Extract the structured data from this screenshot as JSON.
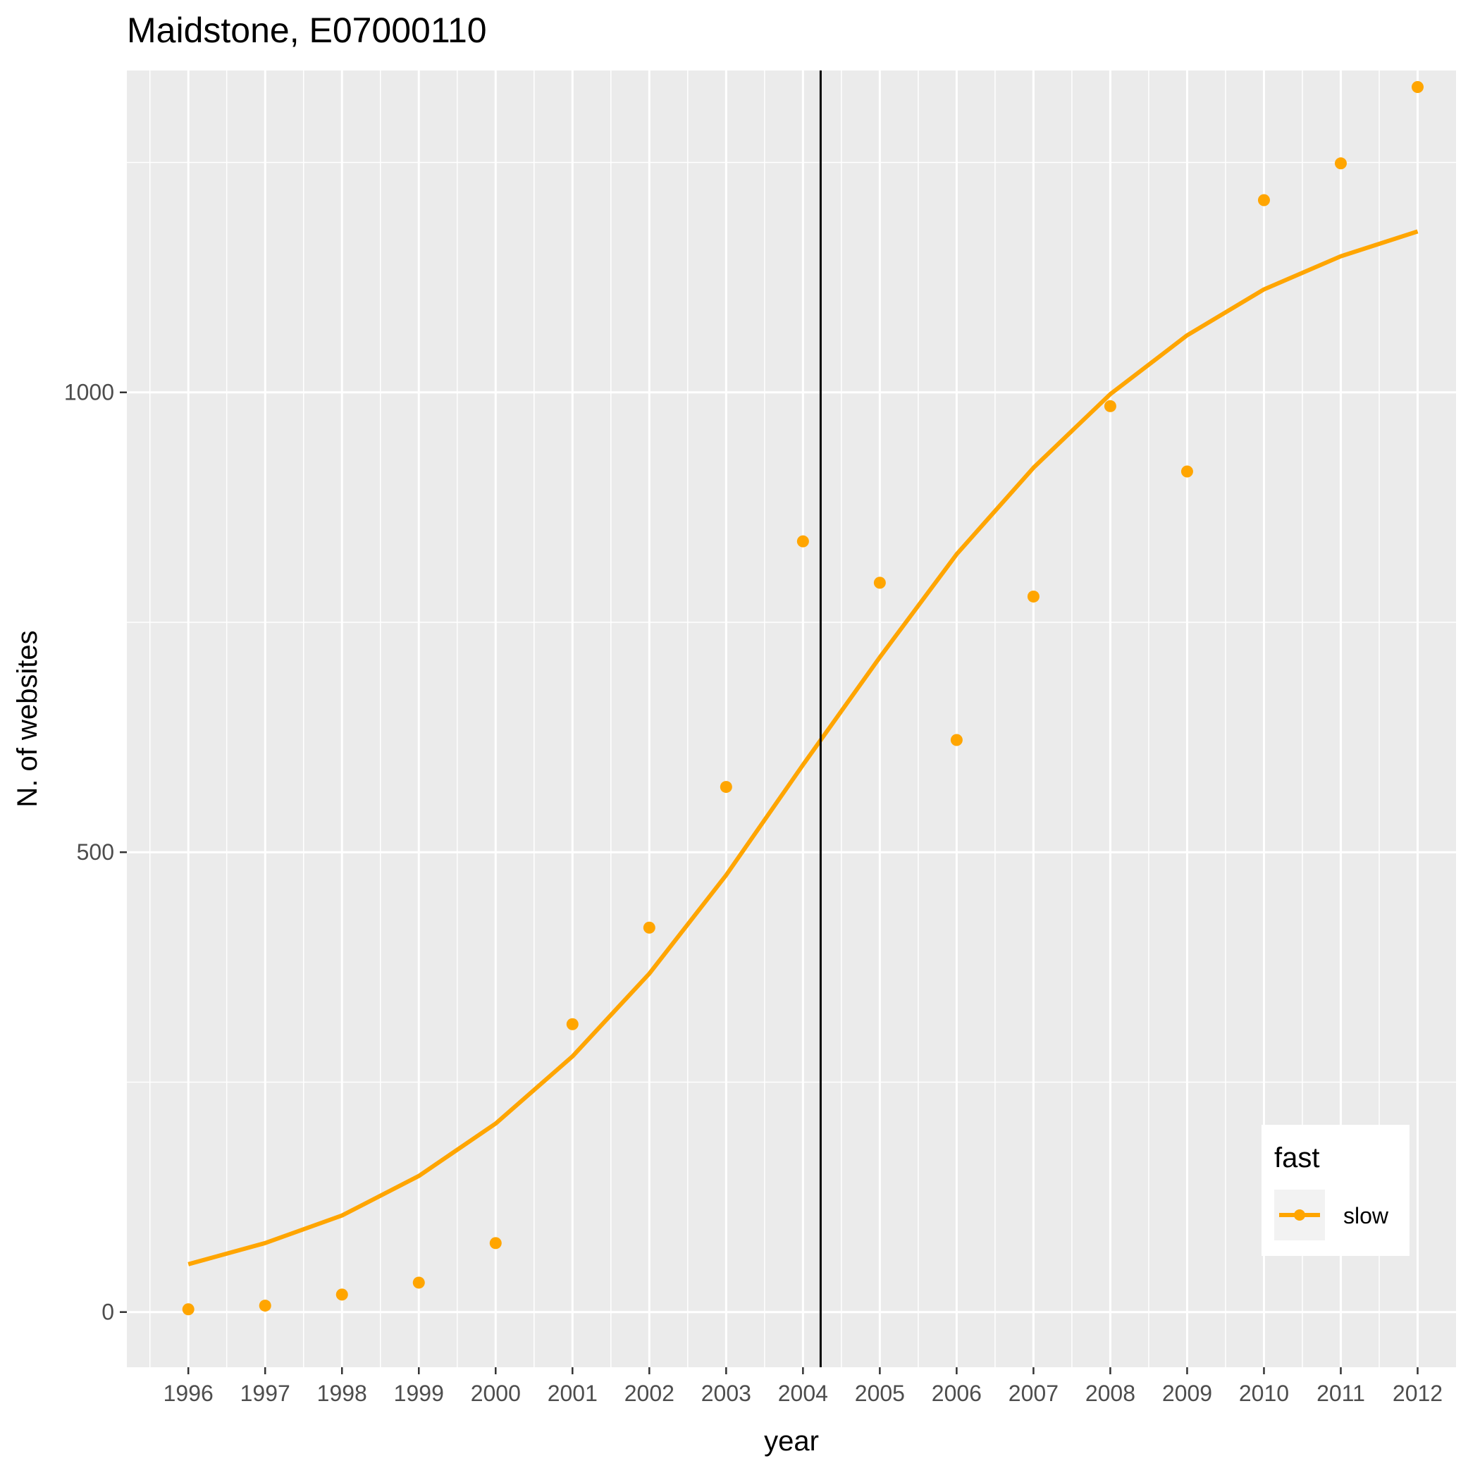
{
  "chart_data": {
    "type": "line",
    "title": "Maidstone, E07000110",
    "xlabel": "year",
    "ylabel": "N. of websites",
    "x": [
      1996,
      1997,
      1998,
      1999,
      2000,
      2001,
      2002,
      2003,
      2004,
      2005,
      2006,
      2007,
      2008,
      2009,
      2010,
      2011,
      2012
    ],
    "x_tick_labels": [
      "1996",
      "1997",
      "1998",
      "1999",
      "2000",
      "2001",
      "2002",
      "2003",
      "2004",
      "2005",
      "2006",
      "2007",
      "2008",
      "2009",
      "2010",
      "2011",
      "2012"
    ],
    "xlim": [
      1995.2,
      2012.5
    ],
    "y_ticks": [
      0,
      500,
      1000
    ],
    "y_tick_labels": [
      "0",
      "500",
      "1000"
    ],
    "ylim": [
      -60,
      1350
    ],
    "grid": true,
    "series": [
      {
        "name": "slow",
        "color": "#FFA500",
        "points": [
          3,
          7,
          19,
          32,
          75,
          313,
          418,
          571,
          838,
          793,
          622,
          778,
          985,
          914,
          1209,
          1249,
          1332
        ],
        "trend": [
          52,
          75,
          105,
          148,
          205,
          278,
          368,
          475,
          595,
          712,
          824,
          918,
          998,
          1062,
          1112,
          1148,
          1175
        ]
      }
    ],
    "vline": {
      "x": 2004.23,
      "color": "#000000"
    },
    "legend": {
      "title": "fast",
      "position": "bottom-right",
      "entries": [
        "slow"
      ]
    }
  }
}
